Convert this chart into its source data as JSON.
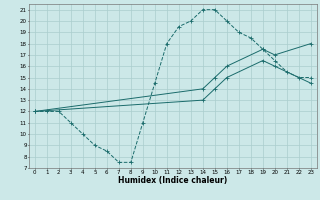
{
  "xlabel": "Humidex (Indice chaleur)",
  "background_color": "#cce8e8",
  "grid_color": "#aacece",
  "line_color": "#1a6b6b",
  "xlim": [
    -0.5,
    23.5
  ],
  "ylim": [
    7,
    21.5
  ],
  "xticks": [
    0,
    1,
    2,
    3,
    4,
    5,
    6,
    7,
    8,
    9,
    10,
    11,
    12,
    13,
    14,
    15,
    16,
    17,
    18,
    19,
    20,
    21,
    22,
    23
  ],
  "yticks": [
    7,
    8,
    9,
    10,
    11,
    12,
    13,
    14,
    15,
    16,
    17,
    18,
    19,
    20,
    21
  ],
  "curve1_x": [
    0,
    1,
    2,
    3,
    4,
    5,
    6,
    7,
    8,
    9,
    10,
    11,
    12,
    13,
    14,
    15,
    16,
    17,
    18,
    19,
    20,
    21,
    22,
    23
  ],
  "curve1_y": [
    12,
    12,
    12,
    11,
    10,
    9,
    8.5,
    7.5,
    7.5,
    11,
    14.5,
    18,
    19.5,
    20,
    21,
    21,
    20,
    19,
    18.5,
    17.5,
    16.5,
    15.5,
    15,
    15
  ],
  "curve2_x": [
    0,
    14,
    15,
    16,
    19,
    20,
    23
  ],
  "curve2_y": [
    12,
    14,
    15,
    16,
    17.5,
    17,
    18
  ],
  "curve3_x": [
    0,
    14,
    15,
    16,
    19,
    20,
    23
  ],
  "curve3_y": [
    12,
    13,
    14,
    15,
    16.5,
    16,
    14.5
  ],
  "marker": "+"
}
